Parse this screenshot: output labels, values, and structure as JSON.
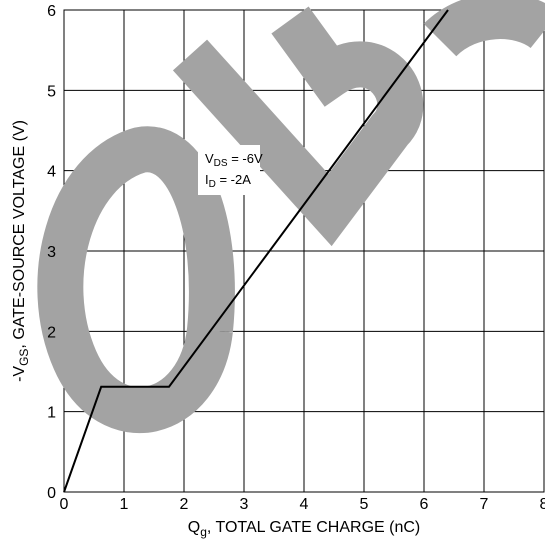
{
  "chart_data": {
    "type": "line",
    "xlabel": [
      "Q",
      "g",
      ", TOTAL GATE CHARGE (nC)"
    ],
    "ylabel": [
      "-V",
      "GS",
      ", GATE-SOURCE VOLTAGE (V)"
    ],
    "annotations": [
      [
        "V",
        "DS",
        " = -6V"
      ],
      [
        "I",
        "D",
        " = -2A"
      ]
    ],
    "x": [
      0,
      0.62,
      1.75,
      6.4
    ],
    "series": [
      {
        "color": "#000000",
        "values": [
          0,
          1.31,
          1.31,
          6
        ]
      }
    ],
    "xlim": [
      0,
      8
    ],
    "xticks": [
      0,
      1,
      2,
      3,
      4,
      5,
      6,
      7,
      8
    ],
    "ylim": [
      0,
      6
    ],
    "yticks": [
      0,
      1,
      2,
      3,
      4,
      5,
      6
    ],
    "grid": true
  }
}
